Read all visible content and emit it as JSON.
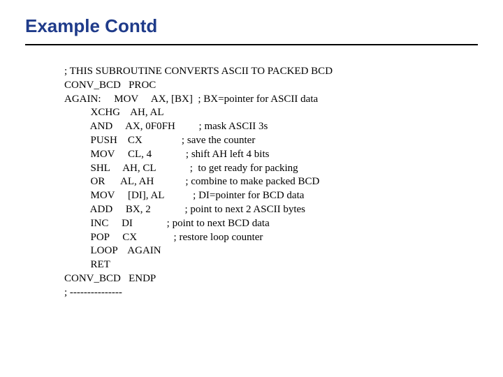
{
  "title": "Example Contd",
  "code": {
    "l1": "; THIS SUBROUTINE CONVERTS ASCII TO PACKED BCD",
    "l2": "CONV_BCD   PROC",
    "l3": "AGAIN:     MOV     AX, [BX]  ; BX=pointer for ASCII data",
    "l4": "          XCHG    AH, AL",
    "l5": "          AND     AX, 0F0FH         ; mask ASCII 3s",
    "l6": "          PUSH    CX               ; save the counter",
    "l7": "          MOV     CL, 4             ; shift AH left 4 bits",
    "l8": "          SHL     AH, CL             ;  to get ready for packing",
    "l9": "          OR      AL, AH            ; combine to make packed BCD",
    "l10": "          MOV     [DI], AL           ; DI=pointer for BCD data",
    "l11": "          ADD     BX, 2             ; point to next 2 ASCII bytes",
    "l12": "          INC     DI             ; point to next BCD data",
    "l13": "          POP     CX              ; restore loop counter",
    "l14": "          LOOP    AGAIN",
    "l15": "          RET",
    "l16": "CONV_BCD   ENDP",
    "l17": "; ---------------"
  },
  "colors": {
    "title": "#1f3b8a",
    "rule": "#000000",
    "text": "#000000",
    "background": "#ffffff"
  },
  "fonts": {
    "title_family": "Arial",
    "title_size_pt": 20,
    "title_weight": "bold",
    "code_family": "Times New Roman",
    "code_size_pt": 11
  }
}
